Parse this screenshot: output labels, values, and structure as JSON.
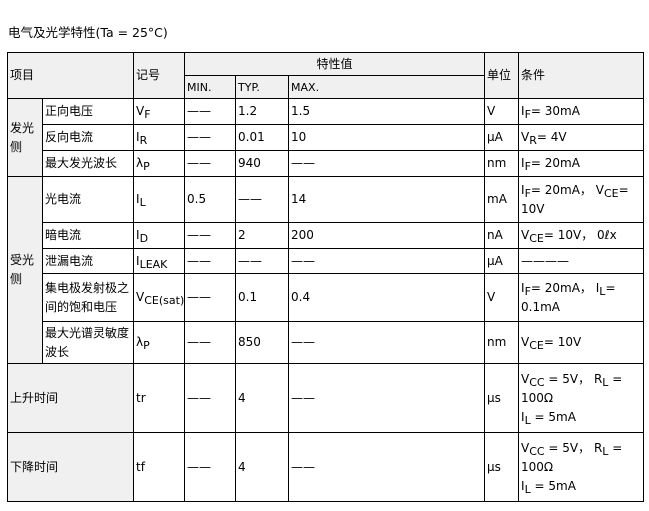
{
  "title": "电气及光学特性(Ta = 25°C)",
  "header": {
    "item": "项目",
    "symbol": "记号",
    "values": "特性值",
    "min": "MIN.",
    "typ": "TYP.",
    "max": "MAX.",
    "unit": "单位",
    "condition": "条件"
  },
  "groups": [
    {
      "label": "发光侧",
      "rows": [
        0,
        1,
        2
      ]
    },
    {
      "label": "受光侧",
      "rows": [
        3,
        4,
        5,
        6,
        7
      ]
    }
  ],
  "rows": [
    {
      "item": "正向电压",
      "symbol": [
        {
          "t": "V"
        },
        {
          "sub": "F"
        }
      ],
      "min": "——",
      "typ": "1.2",
      "max": "1.5",
      "unit": "V",
      "condition": [
        [
          {
            "t": "I"
          },
          {
            "sub": "F"
          },
          {
            "t": "= 30mA"
          }
        ]
      ]
    },
    {
      "item": "反向电流",
      "symbol": [
        {
          "t": "I"
        },
        {
          "sub": "R"
        }
      ],
      "min": "——",
      "typ": "0.01",
      "max": "10",
      "unit": "μA",
      "condition": [
        [
          {
            "t": "V"
          },
          {
            "sub": "R"
          },
          {
            "t": "= 4V"
          }
        ]
      ]
    },
    {
      "item": "最大发光波长",
      "symbol": [
        {
          "t": "λ"
        },
        {
          "sub": "P"
        }
      ],
      "min": "——",
      "typ": "940",
      "max": "——",
      "unit": "nm",
      "condition": [
        [
          {
            "t": "I"
          },
          {
            "sub": "F"
          },
          {
            "t": "= 20mA"
          }
        ]
      ]
    },
    {
      "item": "光电流",
      "symbol": [
        {
          "t": "I"
        },
        {
          "sub": "L"
        }
      ],
      "min": "0.5",
      "typ": "——",
      "max": "14",
      "unit": "mA",
      "condition": [
        [
          {
            "t": "I"
          },
          {
            "sub": "F"
          },
          {
            "t": "= 20mA， V"
          },
          {
            "sub": "CE"
          },
          {
            "t": "="
          }
        ],
        [
          {
            "t": "10V"
          }
        ]
      ]
    },
    {
      "item": "暗电流",
      "symbol": [
        {
          "t": "I"
        },
        {
          "sub": "D"
        }
      ],
      "min": "——",
      "typ": "2",
      "max": "200",
      "unit": "nA",
      "condition": [
        [
          {
            "t": "V"
          },
          {
            "sub": "CE"
          },
          {
            "t": "= 10V， 0ℓx"
          }
        ]
      ]
    },
    {
      "item": "泄漏电流",
      "symbol": [
        {
          "t": "I"
        },
        {
          "sub": "LEAK"
        }
      ],
      "min": "——",
      "typ": "——",
      "max": "——",
      "unit": "μA",
      "condition": [
        [
          {
            "t": "————"
          }
        ]
      ]
    },
    {
      "item": "集电极发射极之间的饱和电压",
      "symbol": [
        {
          "t": "V"
        },
        {
          "sub": "CE(sat)"
        }
      ],
      "min": "——",
      "typ": "0.1",
      "max": "0.4",
      "unit": "V",
      "condition": [
        [
          {
            "t": "I"
          },
          {
            "sub": "F"
          },
          {
            "t": "= 20mA， I"
          },
          {
            "sub": "L"
          },
          {
            "t": "="
          }
        ],
        [
          {
            "t": "0.1mA"
          }
        ]
      ]
    },
    {
      "item": "最大光谱灵敏度波长",
      "symbol": [
        {
          "t": "λ"
        },
        {
          "sub": "P"
        }
      ],
      "min": "——",
      "typ": "850",
      "max": "——",
      "unit": "nm",
      "condition": [
        [
          {
            "t": "V"
          },
          {
            "sub": "CE"
          },
          {
            "t": "= 10V"
          }
        ]
      ]
    },
    {
      "item": "上升时间",
      "symbol": [
        {
          "t": "tr"
        }
      ],
      "min": "——",
      "typ": "4",
      "max": "——",
      "unit": "μs",
      "condition": [
        [
          {
            "t": "V"
          },
          {
            "sub": "CC"
          },
          {
            "t": " = 5V， R"
          },
          {
            "sub": "L"
          },
          {
            "t": " ="
          }
        ],
        [
          {
            "t": "100Ω"
          }
        ],
        [
          {
            "t": "I"
          },
          {
            "sub": "L"
          },
          {
            "t": " = 5mA"
          }
        ]
      ]
    },
    {
      "item": "下降时间",
      "symbol": [
        {
          "t": "tf"
        }
      ],
      "min": "——",
      "typ": "4",
      "max": "——",
      "unit": "μs",
      "condition": [
        [
          {
            "t": "V"
          },
          {
            "sub": "CC"
          },
          {
            "t": " = 5V， R"
          },
          {
            "sub": "L"
          },
          {
            "t": " ="
          }
        ],
        [
          {
            "t": "100Ω"
          }
        ],
        [
          {
            "t": "I"
          },
          {
            "sub": "L"
          },
          {
            "t": " = 5mA"
          }
        ]
      ]
    }
  ]
}
